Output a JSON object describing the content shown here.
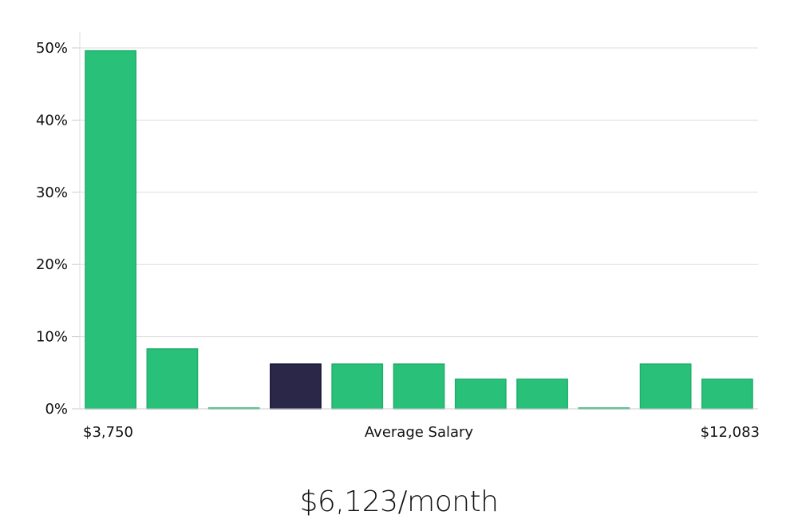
{
  "chart_data": {
    "type": "bar",
    "title": "",
    "xlabel": "Average Salary",
    "ylabel": "",
    "x_min_label": "$3,750",
    "x_max_label": "$12,083",
    "ylim": [
      0,
      50
    ],
    "yticks": [
      "0%",
      "10%",
      "20%",
      "30%",
      "40%",
      "50%"
    ],
    "grid": true,
    "values": [
      49.6,
      8.3,
      0,
      6.2,
      6.2,
      6.2,
      4.1,
      4.1,
      0,
      6.2,
      4.1
    ],
    "highlight_index": 3,
    "colors": {
      "bar": "#29c07a",
      "bar_stroke": "#1fae6b",
      "highlight": "#2a2749",
      "highlight_stroke": "#17143a",
      "grid": "#dddddd"
    }
  },
  "headline": "$6,123/month"
}
